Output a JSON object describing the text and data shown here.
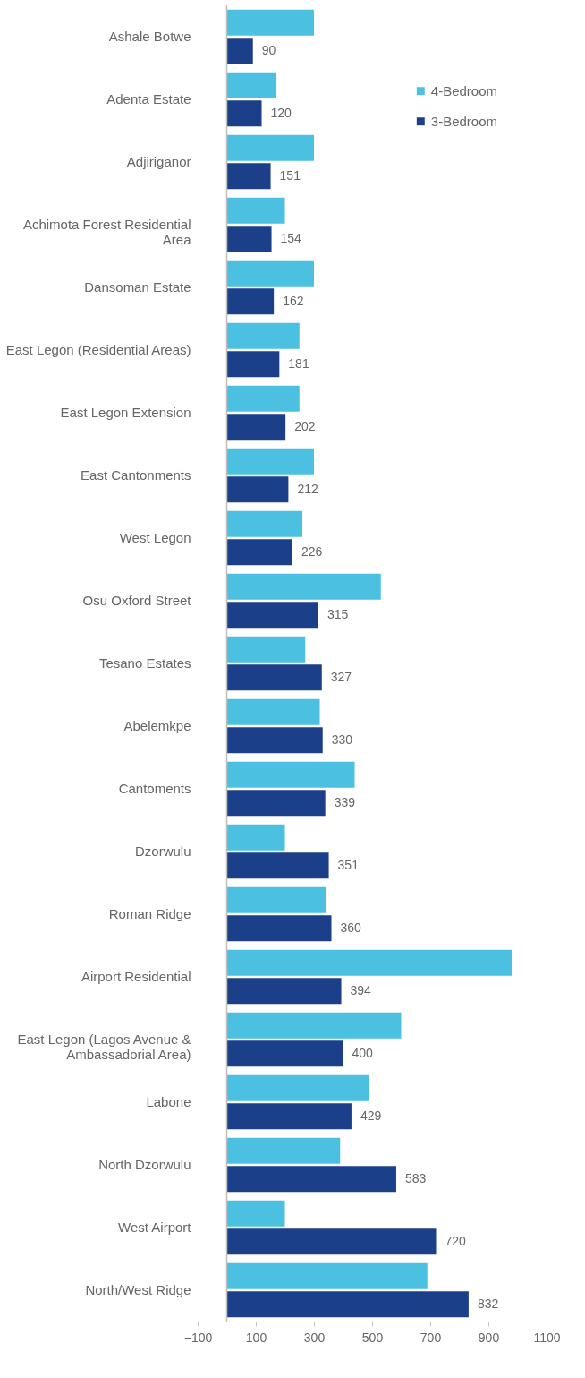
{
  "chart_data": {
    "type": "bar",
    "orientation": "horizontal",
    "categories": [
      "Ashale Botwe",
      "Adenta Estate",
      "Adjiriganor",
      "Achimota Forest Residential Area",
      "Dansoman Estate",
      "East Legon (Residential Areas)",
      "East Legon Extension",
      "East Cantonments",
      "West Legon",
      "Osu Oxford Street",
      "Tesano Estates",
      "Abelemkpe",
      "Cantoments",
      "Dzorwulu",
      "Roman Ridge",
      "Airport Residential",
      "East Legon (Lagos Avenue & Ambassadorial Area)",
      "Labone",
      "North Dzorwulu",
      "West Airport",
      "North/West Ridge"
    ],
    "series": [
      {
        "name": "4-Bedroom",
        "color": "#4bc0e0",
        "values": [
          300,
          170,
          300,
          200,
          300,
          250,
          250,
          300,
          260,
          530,
          270,
          320,
          440,
          200,
          340,
          980,
          600,
          490,
          390,
          200,
          690
        ]
      },
      {
        "name": "3-Bedroom",
        "color": "#1c3f8a",
        "values": [
          90,
          120,
          151,
          154,
          162,
          181,
          202,
          212,
          226,
          315,
          327,
          330,
          339,
          351,
          360,
          394,
          400,
          429,
          583,
          720,
          832
        ],
        "value_labels": [
          "90",
          "120",
          "151",
          "154",
          "162",
          "181",
          "202",
          "212",
          "226",
          "315",
          "327",
          "330",
          "339",
          "351",
          "360",
          "394",
          "400",
          "429",
          "583",
          "720",
          "832"
        ]
      }
    ],
    "xlim": [
      -100,
      1100
    ],
    "xticks": [
      -100,
      100,
      300,
      500,
      700,
      900,
      1100
    ],
    "grid": false,
    "legend": "top right"
  }
}
